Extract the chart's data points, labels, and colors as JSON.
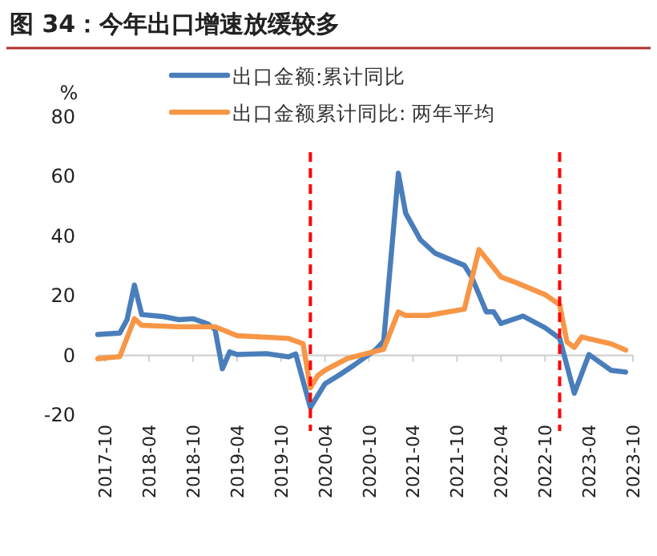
{
  "chart_data": {
    "type": "line",
    "title": "图 34：今年出口增速放缓较多",
    "ylabel": "%",
    "xlim": [
      "2017-09",
      "2023-10"
    ],
    "xticks": [
      "2017-10",
      "2018-04",
      "2018-10",
      "2019-04",
      "2019-10",
      "2020-04",
      "2020-10",
      "2021-04",
      "2021-10",
      "2022-04",
      "2022-10",
      "2023-04",
      "2023-10"
    ],
    "ylim": [
      -20,
      80
    ],
    "yticks": [
      -20,
      0,
      20,
      40,
      60,
      80
    ],
    "legend": "top",
    "marker": "none",
    "line_style": "solid",
    "series": [
      {
        "name": "出口金额:累计同比",
        "color": "#4a7ebb",
        "x": [
          "2017-09",
          "2017-12",
          "2018-01",
          "2018-02",
          "2018-03",
          "2018-06",
          "2018-08",
          "2018-10",
          "2018-12",
          "2019-01",
          "2019-02",
          "2019-03",
          "2019-04",
          "2019-08",
          "2019-11",
          "2019-12",
          "2020-02",
          "2020-04",
          "2020-06",
          "2020-08",
          "2020-11",
          "2020-12",
          "2021-02",
          "2021-03",
          "2021-05",
          "2021-07",
          "2021-11",
          "2021-12",
          "2022-02",
          "2022-03",
          "2022-04",
          "2022-07",
          "2022-10",
          "2022-12",
          "2023-02",
          "2023-04",
          "2023-07",
          "2023-09"
        ],
        "values": [
          7.0,
          7.5,
          12,
          23.6,
          13.7,
          13,
          12,
          12.3,
          10.6,
          8.7,
          -4.5,
          1.2,
          0.3,
          0.6,
          -0.5,
          0.5,
          -17.5,
          -9.5,
          -6.5,
          -3.2,
          2.1,
          4.8,
          61.1,
          47.7,
          38.8,
          34.3,
          30.2,
          26.3,
          14.6,
          14.6,
          10.7,
          13.2,
          9.3,
          5.7,
          -12.7,
          0.3,
          -5,
          -5.6
        ]
      },
      {
        "name": "出口金额累计同比: 两年平均",
        "color": "#f79646",
        "x": [
          "2017-09",
          "2017-12",
          "2018-02",
          "2018-03",
          "2018-08",
          "2019-01",
          "2019-04",
          "2019-11",
          "2020-01",
          "2020-02",
          "2020-03",
          "2020-04",
          "2020-07",
          "2020-12",
          "2021-02",
          "2021-03",
          "2021-06",
          "2021-11",
          "2022-01",
          "2022-04",
          "2022-06",
          "2022-10",
          "2022-12",
          "2023-01",
          "2023-02",
          "2023-03",
          "2023-07",
          "2023-09"
        ],
        "values": [
          -1.1,
          -0.4,
          12.3,
          10.1,
          9.6,
          9.6,
          6.6,
          5.7,
          3.9,
          -10.9,
          -6.8,
          -5,
          -1.1,
          2.1,
          14.6,
          13.4,
          13.4,
          15.5,
          35.5,
          26.3,
          24.5,
          20.4,
          17,
          4.5,
          2.7,
          6.2,
          3.9,
          1.8
        ]
      }
    ],
    "ref_lines": [
      {
        "axis": "x",
        "value": "2020-02",
        "color": "#ff0000",
        "line_style": "dashed"
      },
      {
        "axis": "x",
        "value": "2022-12",
        "color": "#ff0000",
        "line_style": "dashed"
      }
    ]
  }
}
